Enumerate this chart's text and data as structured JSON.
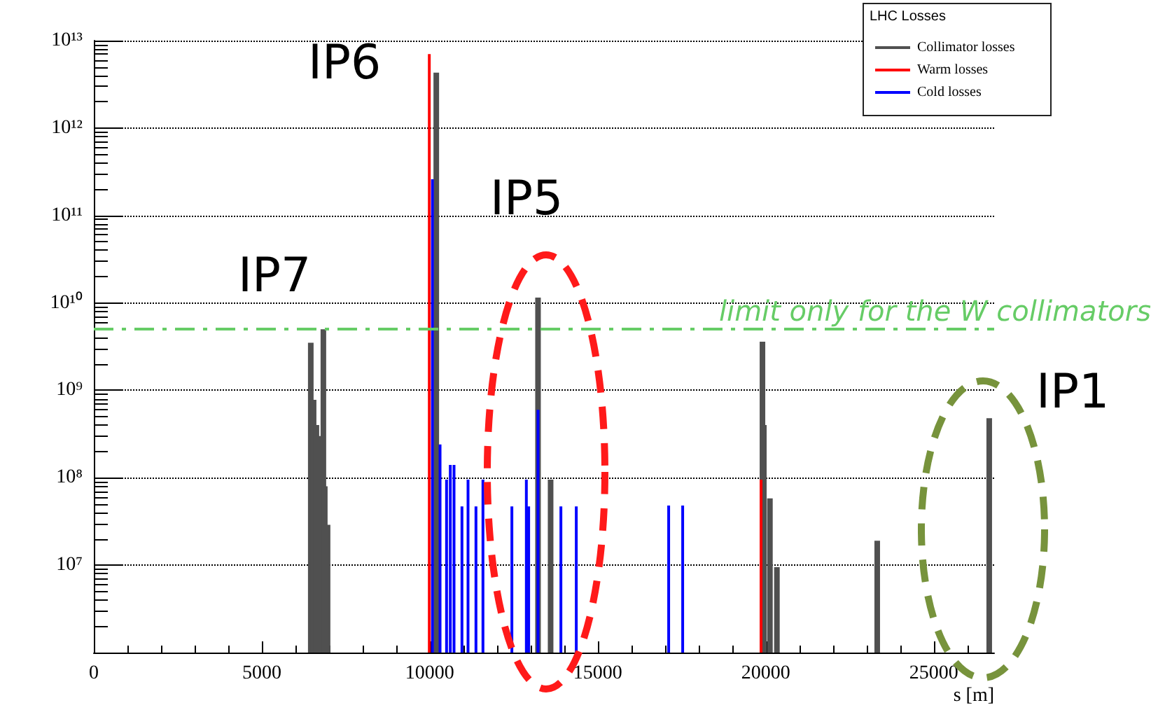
{
  "chart_data": {
    "type": "bar",
    "legend_title": "LHC Losses",
    "xlabel": "s [m]",
    "annotations": [
      "IP6",
      "IP5",
      "IP7",
      "IP1"
    ],
    "xlim": [
      0,
      26800
    ],
    "xticks": [
      0,
      5000,
      10000,
      15000,
      20000,
      25000
    ],
    "ylim": [
      1000000,
      10000000000000
    ],
    "log": true,
    "yticks": [
      {
        "value": 10000000,
        "label": "10⁷"
      },
      {
        "value": 100000000,
        "label": "10⁸"
      },
      {
        "value": 1000000000,
        "label": "10⁹"
      },
      {
        "value": 10000000000,
        "label": "10¹⁰"
      },
      {
        "value": 100000000000,
        "label": "10¹¹"
      },
      {
        "value": 1000000000000,
        "label": "10¹²"
      },
      {
        "value": 10000000000000,
        "label": "10¹³"
      }
    ],
    "grid": "y",
    "legend": "top right",
    "ref_lines": [
      {
        "axis": "y",
        "value": 5000000000,
        "label": "limit only for the W collimators",
        "color": "#66cc66",
        "line_style": "dashed"
      }
    ],
    "series": [
      {
        "name": "Collimator losses",
        "color": "#505050",
        "x": [
          6458,
          6542,
          6625,
          6708,
          6833,
          6875,
          6958,
          10194,
          13222,
          13597,
          19903,
          19944,
          20125,
          20333,
          23319,
          26653
        ],
        "values": [
          3500000000,
          780000000,
          400000000,
          300000000,
          5000000000,
          80000000,
          29000000,
          4300000000000,
          11500000000,
          95000000,
          3600000000,
          400000000,
          58000000,
          9500000,
          19000000,
          480000000
        ]
      },
      {
        "name": "Warm losses",
        "color": "#ff0000",
        "x": [
          9986,
          19861
        ],
        "values": [
          7000000000000,
          95000000
        ]
      },
      {
        "name": "Cold losses",
        "color": "#0000ff",
        "x": [
          10080,
          10306,
          10500,
          10611,
          10722,
          10958,
          11139,
          11375,
          11583,
          12444,
          12875,
          12944,
          13222,
          13903,
          14361,
          17111,
          17528
        ],
        "values": [
          260000000000,
          240000000,
          95000000,
          140000000,
          140000000,
          47000000,
          95000000,
          47000000,
          95000000,
          47000000,
          95000000,
          47000000,
          600000000,
          47000000,
          47000000,
          48000000,
          48000000
        ]
      }
    ]
  }
}
